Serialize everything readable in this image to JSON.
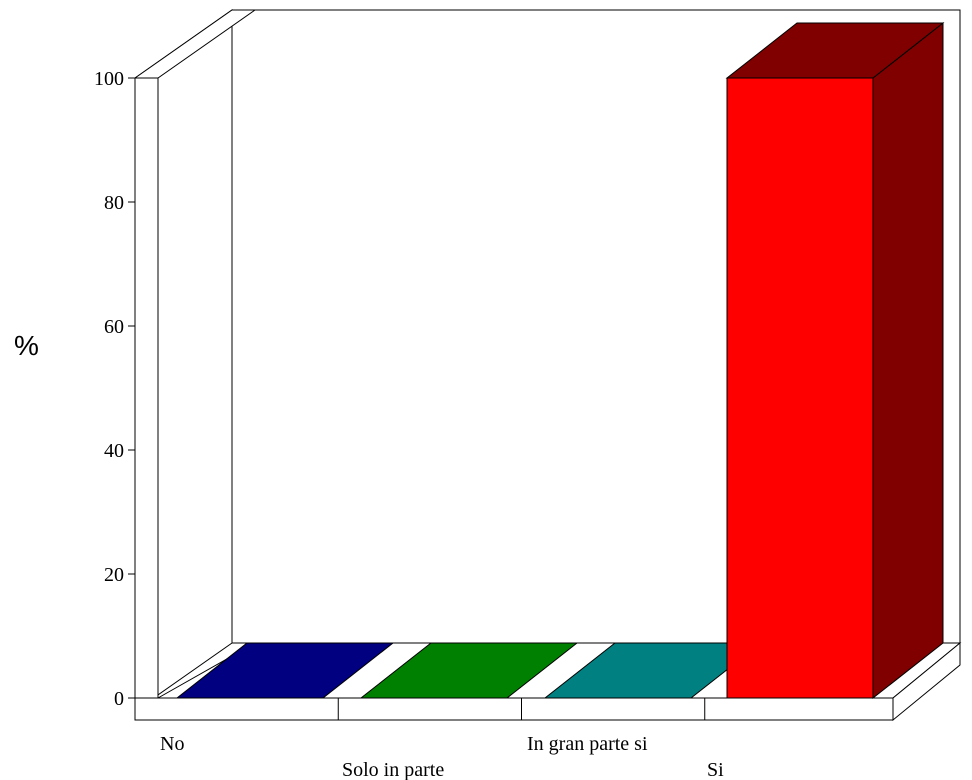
{
  "chart_data": {
    "type": "bar",
    "title": "",
    "xlabel": "",
    "ylabel": "%",
    "ylim": [
      0,
      100
    ],
    "yticks": [
      "0",
      "20",
      "40",
      "60",
      "80",
      "100"
    ],
    "categories": [
      "No",
      "Solo in parte",
      "In gran parte si",
      "Si"
    ],
    "values": [
      0,
      0,
      0,
      100
    ],
    "colors": [
      "#000080",
      "#008000",
      "#008080",
      "#ff0000"
    ],
    "side_colors": [
      "#000050",
      "#005000",
      "#005050",
      "#800000"
    ],
    "grid": false,
    "legend": "none"
  }
}
